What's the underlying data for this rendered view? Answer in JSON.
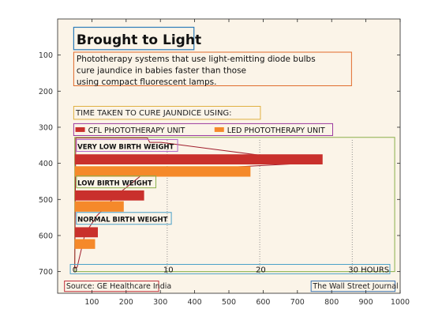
{
  "chart_data": {
    "type": "bar",
    "title": "Brought to Light",
    "subtitle": "Phototherapy systems that use light-emitting diode bulbs cure jaundice in babies faster than those using compact fluorescent lamps.",
    "section_label": "TIME TAKEN TO CURE JAUNDICE USING:",
    "categories": [
      "VERY LOW BIRTH WEIGHT",
      "LOW BIRTH WEIGHT",
      "NORMAL BIRTH WEIGHT"
    ],
    "series": [
      {
        "name": "CFL PHOTOTHERAPY UNIT",
        "color": "#c9302c",
        "values": [
          26.8,
          7.5,
          2.5
        ]
      },
      {
        "name": "LED PHOTOTHERAPY UNIT",
        "color": "#f5892a",
        "values": [
          19.0,
          5.3,
          2.2
        ]
      }
    ],
    "inner_axis": {
      "ticks": [
        "0",
        "10",
        "20",
        "30 HOURS"
      ],
      "tick_values": [
        0,
        10,
        20,
        30
      ],
      "range": [
        0,
        34
      ],
      "gridlines": "dotted"
    },
    "source": "Source: GE Healthcare India",
    "credit": "The Wall Street Journal",
    "outer_axes": {
      "x_ticks": [
        100,
        200,
        300,
        400,
        500,
        600,
        700,
        800,
        900,
        1000
      ],
      "y_ticks": [
        100,
        200,
        300,
        400,
        500,
        600,
        700
      ],
      "xlim": [
        0,
        1000
      ],
      "ylim": [
        760,
        0
      ],
      "y_inverted": true
    },
    "colors": {
      "panel_background": "#fbf4e8",
      "title_box": "#2b7bb9",
      "subtitle_box": "#e06a2a",
      "section_box": "#e0b040",
      "legend_box": "#9b3aa0",
      "plot_box": "#8ab04a",
      "axis_box": "#4aa0c8",
      "source_box": "#c0303a",
      "credit_box": "#3a72b0",
      "annotation_outline": "#a01c2c",
      "category_box_very_low": "#b46acb",
      "category_box_low": "#8ab04a",
      "category_box_normal": "#4aa0c8"
    }
  }
}
